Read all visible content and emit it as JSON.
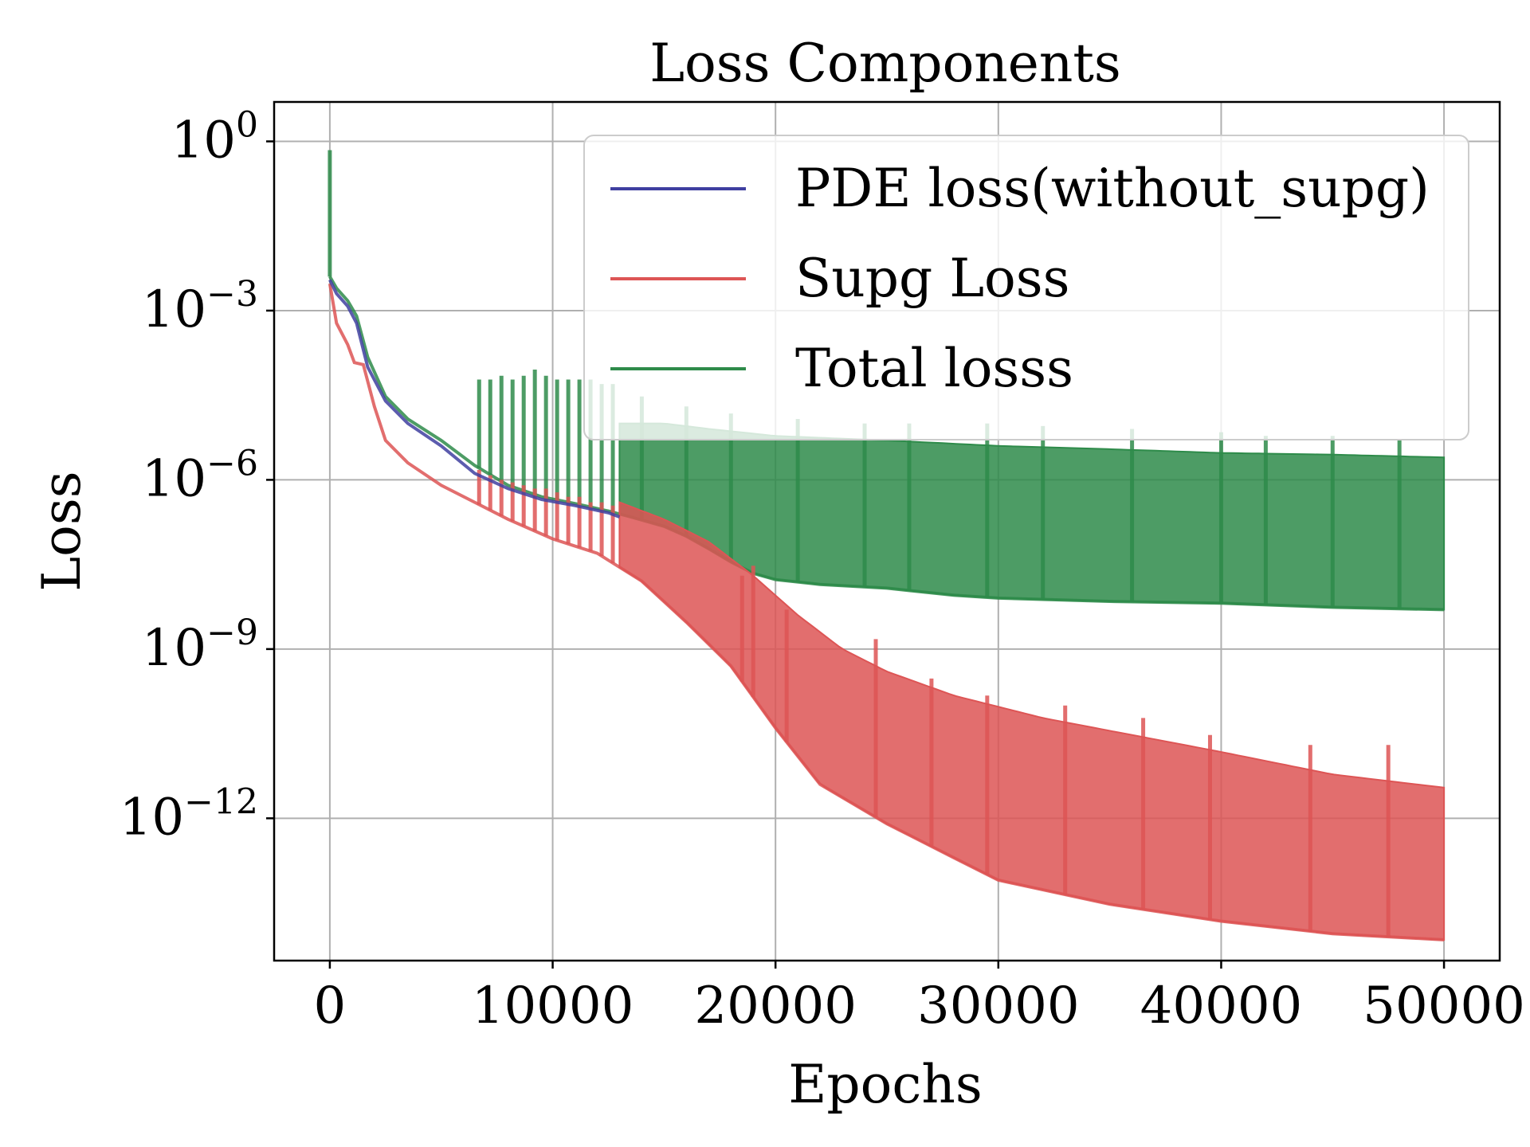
{
  "chart_data": {
    "type": "line",
    "title": "Loss Components",
    "xlabel": "Epochs",
    "ylabel": "Loss",
    "xlim": [
      -2500,
      52500
    ],
    "ylim": [
      3e-15,
      5
    ],
    "yscale": "log",
    "grid": true,
    "legend_position": "top-right",
    "x_ticks": [
      {
        "value": 0,
        "label": "0"
      },
      {
        "value": 10000,
        "label": "10000"
      },
      {
        "value": 20000,
        "label": "20000"
      },
      {
        "value": 30000,
        "label": "30000"
      },
      {
        "value": 40000,
        "label": "40000"
      },
      {
        "value": 50000,
        "label": "50000"
      }
    ],
    "y_ticks": [
      {
        "value": 1,
        "base": "10",
        "exp": "0"
      },
      {
        "value": 0.001,
        "base": "10",
        "exp": "−3"
      },
      {
        "value": 1e-06,
        "base": "10",
        "exp": "−6"
      },
      {
        "value": 1e-09,
        "base": "10",
        "exp": "−9"
      },
      {
        "value": 1e-12,
        "base": "10",
        "exp": "−12"
      }
    ],
    "series": [
      {
        "name": "PDE loss(without_supg)",
        "color": "#3f3fa0",
        "lower": [
          [
            0,
            0.0035
          ],
          [
            300,
            0.002
          ],
          [
            800,
            0.0012
          ],
          [
            1200,
            0.0006
          ],
          [
            1700,
            0.0001
          ],
          [
            2500,
            2.5e-05
          ],
          [
            3500,
            1e-05
          ],
          [
            5000,
            4e-06
          ],
          [
            6500,
            1.3e-06
          ],
          [
            8000,
            7e-07
          ],
          [
            9500,
            4.5e-07
          ],
          [
            11000,
            3.5e-07
          ],
          [
            12500,
            2.6e-07
          ],
          [
            13000,
            2.2e-07
          ]
        ],
        "upper": [],
        "peaks": []
      },
      {
        "name": "Supg Loss",
        "color": "#dd5555",
        "lower": [
          [
            0,
            0.003
          ],
          [
            300,
            0.0006
          ],
          [
            800,
            0.00025
          ],
          [
            1100,
            0.00012
          ],
          [
            1500,
            0.00011
          ],
          [
            2000,
            2e-05
          ],
          [
            2500,
            5e-06
          ],
          [
            3500,
            2e-06
          ],
          [
            5000,
            8e-07
          ],
          [
            6500,
            4e-07
          ],
          [
            8000,
            2e-07
          ],
          [
            10000,
            9e-08
          ],
          [
            12000,
            5e-08
          ],
          [
            14000,
            1.6e-08
          ],
          [
            16000,
            3e-09
          ],
          [
            18000,
            5e-10
          ],
          [
            20000,
            4e-11
          ],
          [
            22000,
            4e-12
          ],
          [
            25000,
            8e-13
          ],
          [
            28000,
            2e-13
          ],
          [
            30000,
            8e-14
          ],
          [
            35000,
            3e-14
          ],
          [
            40000,
            1.5e-14
          ],
          [
            45000,
            9e-15
          ],
          [
            50000,
            7e-15
          ]
        ],
        "upper": [
          [
            13000,
            4e-07
          ],
          [
            15000,
            2e-07
          ],
          [
            17000,
            8e-08
          ],
          [
            19000,
            2e-08
          ],
          [
            21000,
            4e-09
          ],
          [
            23000,
            1e-09
          ],
          [
            25000,
            4e-10
          ],
          [
            28000,
            1.5e-10
          ],
          [
            32000,
            6e-11
          ],
          [
            36000,
            3e-11
          ],
          [
            40000,
            1.5e-11
          ],
          [
            45000,
            6e-12
          ],
          [
            50000,
            3.5e-12
          ]
        ],
        "peaks": [
          [
            6700,
            1.5e-06
          ],
          [
            7200,
            1.2e-06
          ],
          [
            7700,
            1e-06
          ],
          [
            8200,
            9e-07
          ],
          [
            8700,
            8e-07
          ],
          [
            9200,
            7e-07
          ],
          [
            9700,
            7e-07
          ],
          [
            10200,
            6e-07
          ],
          [
            10700,
            5e-07
          ],
          [
            11200,
            5e-07
          ],
          [
            11700,
            4e-07
          ],
          [
            12200,
            4e-07
          ],
          [
            12700,
            3.5e-07
          ],
          [
            18500,
            2e-08
          ],
          [
            19000,
            3e-08
          ],
          [
            20500,
            5e-09
          ],
          [
            24500,
            1.5e-09
          ],
          [
            27000,
            3e-10
          ],
          [
            29500,
            1.5e-10
          ],
          [
            33000,
            1e-10
          ],
          [
            36500,
            6e-11
          ],
          [
            39500,
            3e-11
          ],
          [
            44000,
            2e-11
          ],
          [
            47500,
            2e-11
          ]
        ]
      },
      {
        "name": "Total losss",
        "color": "#2e8b4a",
        "lower": [
          [
            0,
            0.004
          ],
          [
            300,
            0.0025
          ],
          [
            800,
            0.0015
          ],
          [
            1200,
            0.0008
          ],
          [
            1700,
            0.00015
          ],
          [
            2500,
            3e-05
          ],
          [
            3500,
            1.2e-05
          ],
          [
            5000,
            5e-06
          ],
          [
            6500,
            1.8e-06
          ],
          [
            8000,
            8e-07
          ],
          [
            9500,
            5e-07
          ],
          [
            11000,
            3.8e-07
          ],
          [
            12500,
            2.8e-07
          ],
          [
            13500,
            2.2e-07
          ],
          [
            15000,
            1.5e-07
          ],
          [
            16000,
            1e-07
          ],
          [
            17000,
            6e-08
          ],
          [
            18000,
            3.5e-08
          ],
          [
            19000,
            2.2e-08
          ],
          [
            20000,
            1.7e-08
          ],
          [
            22000,
            1.4e-08
          ],
          [
            25000,
            1.2e-08
          ],
          [
            28000,
            9e-09
          ],
          [
            30000,
            8e-09
          ],
          [
            35000,
            7e-09
          ],
          [
            40000,
            6.5e-09
          ],
          [
            45000,
            5.5e-09
          ],
          [
            50000,
            5e-09
          ]
        ],
        "upper": [
          [
            13000,
            1e-05
          ],
          [
            15000,
            1e-05
          ],
          [
            17000,
            8e-06
          ],
          [
            20000,
            6e-06
          ],
          [
            25000,
            5e-06
          ],
          [
            30000,
            4e-06
          ],
          [
            35000,
            3.5e-06
          ],
          [
            40000,
            3e-06
          ],
          [
            45000,
            2.8e-06
          ],
          [
            50000,
            2.5e-06
          ]
        ],
        "peaks": [
          [
            0,
            0.7
          ],
          [
            6700,
            6e-05
          ],
          [
            7200,
            6e-05
          ],
          [
            7700,
            7e-05
          ],
          [
            8200,
            6e-05
          ],
          [
            8700,
            7e-05
          ],
          [
            9200,
            9e-05
          ],
          [
            9700,
            7e-05
          ],
          [
            10200,
            6e-05
          ],
          [
            10700,
            6e-05
          ],
          [
            11200,
            6e-05
          ],
          [
            11700,
            6e-05
          ],
          [
            12200,
            5e-05
          ],
          [
            12700,
            5e-05
          ],
          [
            14000,
            3e-05
          ],
          [
            16000,
            2e-05
          ],
          [
            18000,
            1.5e-05
          ],
          [
            21000,
            1.2e-05
          ],
          [
            24000,
            1e-05
          ],
          [
            26000,
            1e-05
          ],
          [
            29500,
            1e-05
          ],
          [
            32000,
            9e-06
          ],
          [
            36000,
            8e-06
          ],
          [
            40000,
            7e-06
          ],
          [
            42000,
            6e-06
          ],
          [
            45000,
            6e-06
          ],
          [
            48000,
            5e-06
          ]
        ]
      }
    ]
  }
}
